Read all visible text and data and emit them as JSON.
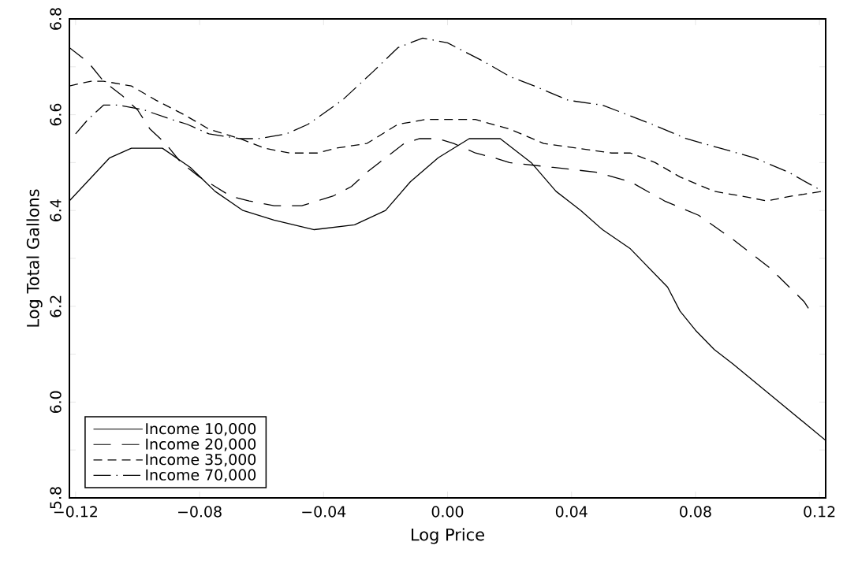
{
  "chart_data": {
    "type": "line",
    "xlabel": "Log Price",
    "ylabel": "Log Total Gallons",
    "xlim": [
      -0.122,
      0.122
    ],
    "ylim": [
      5.8,
      6.8
    ],
    "xticks": [
      {
        "value": -0.12,
        "label": "−0.12"
      },
      {
        "value": -0.08,
        "label": "−0.08"
      },
      {
        "value": -0.04,
        "label": "−0.04"
      },
      {
        "value": 0,
        "label": "0.00"
      },
      {
        "value": 0.04,
        "label": "0.04"
      },
      {
        "value": 0.08,
        "label": "0.08"
      },
      {
        "value": 0.12,
        "label": "0.12"
      }
    ],
    "yticks": [
      5.8,
      {
        "value": 5.9,
        "label": null
      },
      {
        "value": 6.0,
        "label": "6.0"
      },
      {
        "value": 6.1,
        "label": null
      },
      6.2,
      {
        "value": 6.3,
        "label": null
      },
      6.4,
      {
        "value": 6.5,
        "label": null
      },
      6.6,
      {
        "value": 6.7,
        "label": null
      },
      6.8
    ],
    "grid": false,
    "legend": "bottom left",
    "marker": "none",
    "series": [
      {
        "name": "Income 10,000",
        "color": "#000000",
        "line_style": "solid",
        "x": [
          -0.122,
          -0.109,
          -0.102,
          -0.097,
          -0.092,
          -0.083,
          -0.075,
          -0.066,
          -0.056,
          -0.043,
          -0.03,
          -0.02,
          -0.012,
          -0.003,
          0.007,
          0.012,
          0.017,
          0.027,
          0.035,
          0.043,
          0.05,
          0.059,
          0.065,
          0.071,
          0.075,
          0.08,
          0.086,
          0.092,
          0.107,
          0.122
        ],
        "values": [
          6.42,
          6.51,
          6.53,
          6.53,
          6.53,
          6.49,
          6.44,
          6.4,
          6.38,
          6.36,
          6.37,
          6.4,
          6.46,
          6.51,
          6.55,
          6.55,
          6.55,
          6.5,
          6.44,
          6.4,
          6.36,
          6.32,
          6.28,
          6.24,
          6.19,
          6.15,
          6.11,
          6.08,
          6.0,
          5.92
        ]
      },
      {
        "name": "Income 20,000",
        "color": "#000000",
        "line_style": "longdash",
        "x": [
          -0.122,
          -0.116,
          -0.111,
          -0.105,
          -0.1,
          -0.096,
          -0.091,
          -0.086,
          -0.08,
          -0.075,
          -0.07,
          -0.064,
          -0.056,
          -0.047,
          -0.042,
          -0.037,
          -0.031,
          -0.026,
          -0.02,
          -0.014,
          -0.009,
          -0.003,
          0.002,
          0.009,
          0.015,
          0.02,
          0.034,
          0.048,
          0.059,
          0.07,
          0.081,
          0.092,
          0.104,
          0.115,
          0.117
        ],
        "values": [
          6.74,
          6.71,
          6.67,
          6.64,
          6.61,
          6.57,
          6.54,
          6.5,
          6.47,
          6.45,
          6.43,
          6.42,
          6.41,
          6.41,
          6.42,
          6.43,
          6.45,
          6.48,
          6.51,
          6.54,
          6.55,
          6.55,
          6.54,
          6.52,
          6.51,
          6.5,
          6.49,
          6.48,
          6.46,
          6.42,
          6.39,
          6.34,
          6.28,
          6.21,
          6.19
        ]
      },
      {
        "name": "Income 35,000",
        "color": "#000000",
        "line_style": "dashed",
        "x": [
          -0.122,
          -0.115,
          -0.111,
          -0.102,
          -0.094,
          -0.085,
          -0.077,
          -0.067,
          -0.059,
          -0.051,
          -0.042,
          -0.036,
          -0.026,
          -0.016,
          -0.007,
          0.002,
          0.009,
          0.02,
          0.031,
          0.042,
          0.053,
          0.059,
          0.067,
          0.075,
          0.086,
          0.095,
          0.103,
          0.111,
          0.121
        ],
        "values": [
          6.66,
          6.67,
          6.67,
          6.66,
          6.63,
          6.6,
          6.57,
          6.55,
          6.53,
          6.52,
          6.52,
          6.53,
          6.54,
          6.58,
          6.59,
          6.59,
          6.59,
          6.57,
          6.54,
          6.53,
          6.52,
          6.52,
          6.5,
          6.47,
          6.44,
          6.43,
          6.42,
          6.43,
          6.44
        ]
      },
      {
        "name": "Income 70,000",
        "color": "#000000",
        "line_style": "dashdot",
        "x": [
          -0.12,
          -0.116,
          -0.111,
          -0.106,
          -0.098,
          -0.089,
          -0.084,
          -0.077,
          -0.067,
          -0.061,
          -0.052,
          -0.045,
          -0.034,
          -0.024,
          -0.016,
          -0.008,
          0.0,
          0.006,
          0.012,
          0.02,
          0.028,
          0.039,
          0.05,
          0.058,
          0.066,
          0.077,
          0.088,
          0.099,
          0.11,
          0.121
        ],
        "values": [
          6.56,
          6.59,
          6.62,
          6.62,
          6.61,
          6.59,
          6.58,
          6.56,
          6.55,
          6.55,
          6.56,
          6.58,
          6.63,
          6.69,
          6.74,
          6.76,
          6.75,
          6.73,
          6.71,
          6.68,
          6.66,
          6.63,
          6.62,
          6.6,
          6.58,
          6.55,
          6.53,
          6.51,
          6.48,
          6.44
        ]
      }
    ]
  }
}
